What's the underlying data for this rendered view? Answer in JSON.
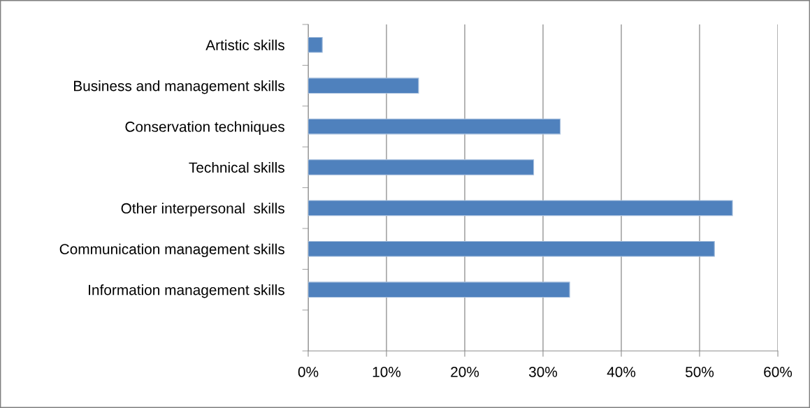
{
  "chart_data": {
    "type": "bar",
    "orientation": "horizontal",
    "categories": [
      "Artistic skills",
      "Business and management skills",
      "Conservation techniques",
      "Technical skills",
      "Other interpersonal  skills",
      "Communication management skills",
      "Information management skills",
      null
    ],
    "values": [
      1.8,
      14.1,
      32.2,
      28.8,
      54.2,
      51.9,
      33.4,
      null
    ],
    "color": "#4f81bd",
    "xlim": [
      0,
      60
    ],
    "xticks": [
      {
        "value": 0,
        "label": "0%"
      },
      {
        "value": 10,
        "label": "10%"
      },
      {
        "value": 20,
        "label": "20%"
      },
      {
        "value": 30,
        "label": "30%"
      },
      {
        "value": 40,
        "label": "40%"
      },
      {
        "value": 50,
        "label": "50%"
      },
      {
        "value": 60,
        "label": "60%"
      }
    ],
    "grid": "x",
    "legend": false
  }
}
